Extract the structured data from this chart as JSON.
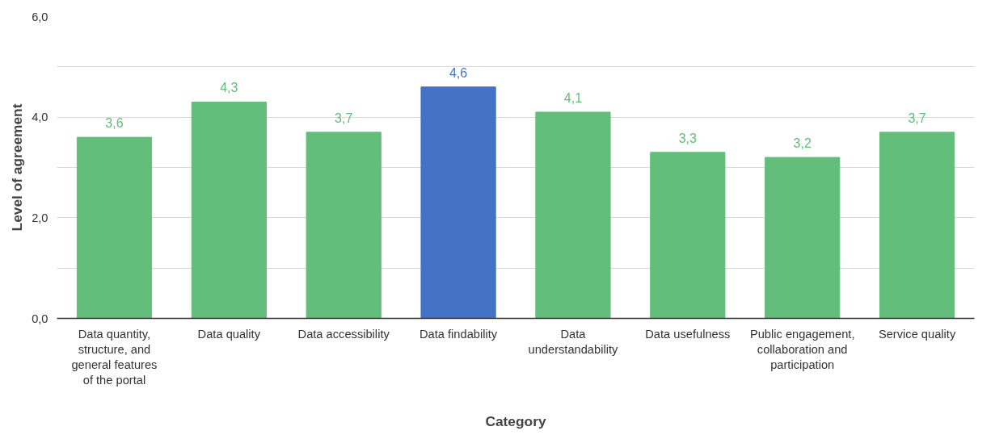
{
  "chart_data": {
    "type": "bar",
    "xlabel": "Category",
    "ylabel": "Level of agreement",
    "categories": [
      "Data quantity, structure, and general features of the portal",
      "Data quality",
      "Data accessibility",
      "Data findability",
      "Data understandability",
      "Data usefulness",
      "Public engagement, collaboration and participation",
      "Service quality"
    ],
    "values": [
      3.6,
      4.3,
      3.7,
      4.6,
      4.1,
      3.3,
      3.2,
      3.7
    ],
    "colors": [
      "#63be7b",
      "#63be7b",
      "#63be7b",
      "#4472c4",
      "#63be7b",
      "#63be7b",
      "#63be7b",
      "#63be7b"
    ],
    "value_labels": [
      "3,6",
      "4,3",
      "3,7",
      "4,6",
      "4,1",
      "3,3",
      "3,2",
      "3,7"
    ],
    "ylim": [
      0,
      6
    ],
    "yticks": [
      {
        "value": 0,
        "label": "0,0"
      },
      {
        "value": 1,
        "label": null
      },
      {
        "value": 2,
        "label": "2,0"
      },
      {
        "value": 3,
        "label": null
      },
      {
        "value": 4,
        "label": "4,0"
      },
      {
        "value": 5,
        "label": null
      },
      {
        "value": 6,
        "label": "6,0"
      }
    ],
    "grid": "y"
  }
}
